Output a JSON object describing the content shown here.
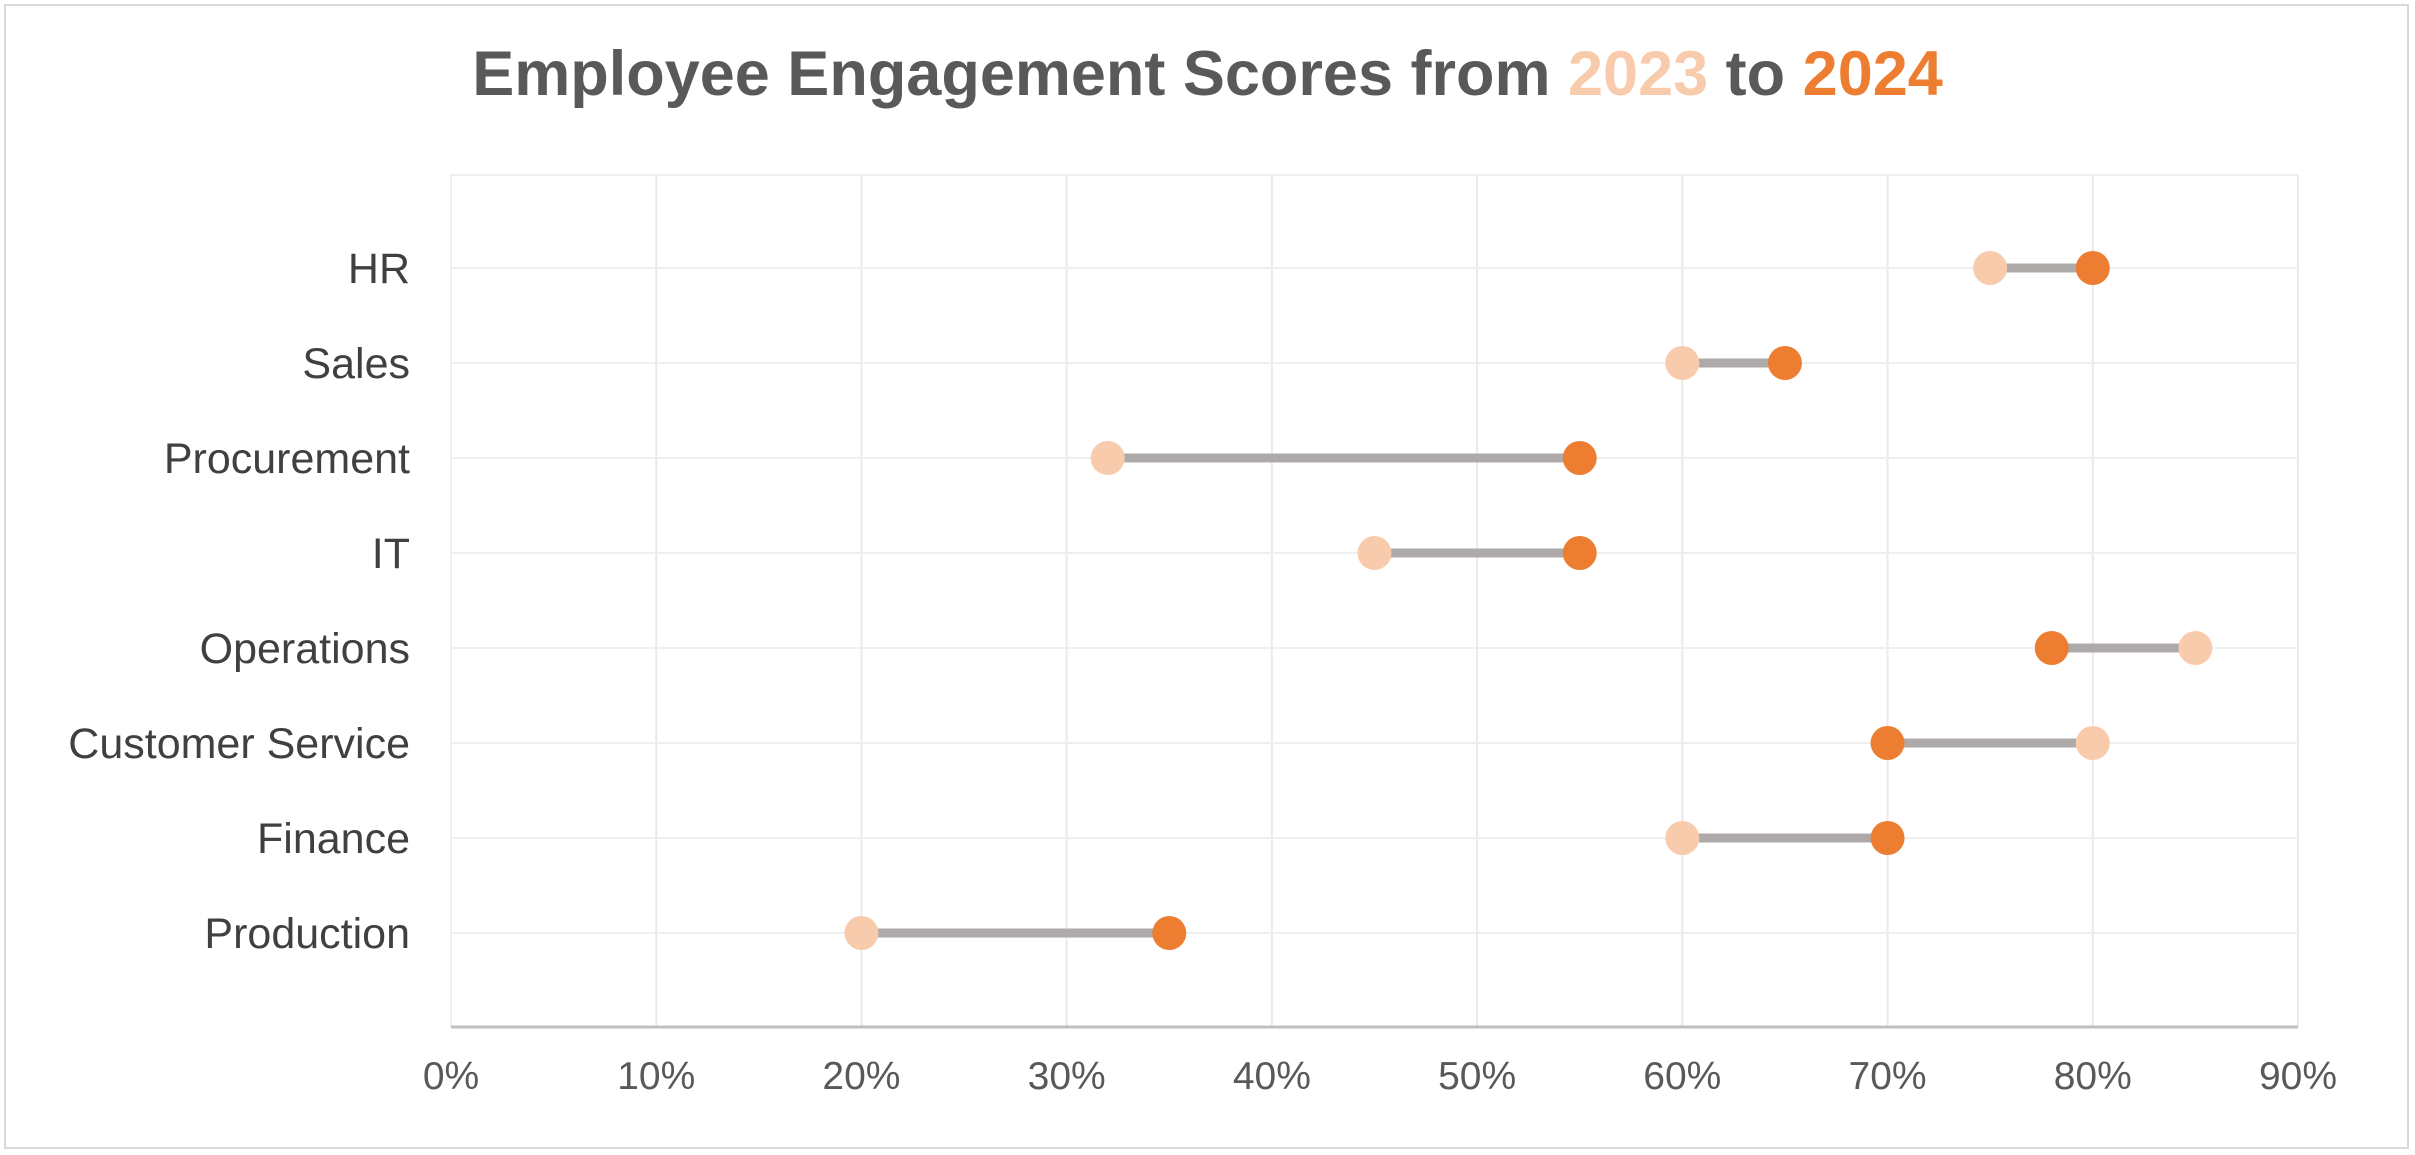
{
  "chart_data": {
    "type": "dumbbell",
    "title": {
      "prefix": "Employee Engagement Scores from ",
      "year_start": "2023",
      "middle": " to ",
      "year_end": "2024"
    },
    "categories": [
      "HR",
      "Sales",
      "Procurement",
      "IT",
      "Operations",
      "Customer Service",
      "Finance",
      "Production"
    ],
    "series": [
      {
        "year": "2023",
        "color": "#f8cbad",
        "values": [
          0.75,
          0.6,
          0.32,
          0.45,
          0.85,
          0.8,
          0.6,
          0.2
        ]
      },
      {
        "year": "2024",
        "color": "#ed7d31",
        "values": [
          0.8,
          0.65,
          0.55,
          0.55,
          0.78,
          0.7,
          0.7,
          0.35
        ]
      }
    ],
    "connector_color": "#aeaaaa",
    "x_axis": {
      "min": 0,
      "max": 0.9,
      "ticks": [
        0,
        0.1,
        0.2,
        0.3,
        0.4,
        0.5,
        0.6,
        0.7,
        0.8,
        0.9
      ],
      "tick_labels": [
        "0%",
        "10%",
        "20%",
        "30%",
        "40%",
        "50%",
        "60%",
        "70%",
        "80%",
        "90%"
      ]
    },
    "grid": true,
    "legend": "none"
  }
}
